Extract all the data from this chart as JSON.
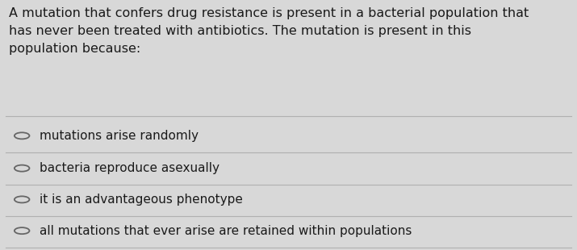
{
  "question_text": "A mutation that confers drug resistance is present in a bacterial population that\nhas never been treated with antibiotics. The mutation is present in this\npopulation because:",
  "options": [
    "mutations arise randomly",
    "bacteria reproduce asexually",
    "it is an advantageous phenotype",
    "all mutations that ever arise are retained within populations"
  ],
  "bg_color": "#d8d8d8",
  "text_color": "#1a1a1a",
  "divider_color": "#b0b0b0",
  "question_fontsize": 11.5,
  "option_fontsize": 11.0,
  "circle_edge_color": "#666666"
}
